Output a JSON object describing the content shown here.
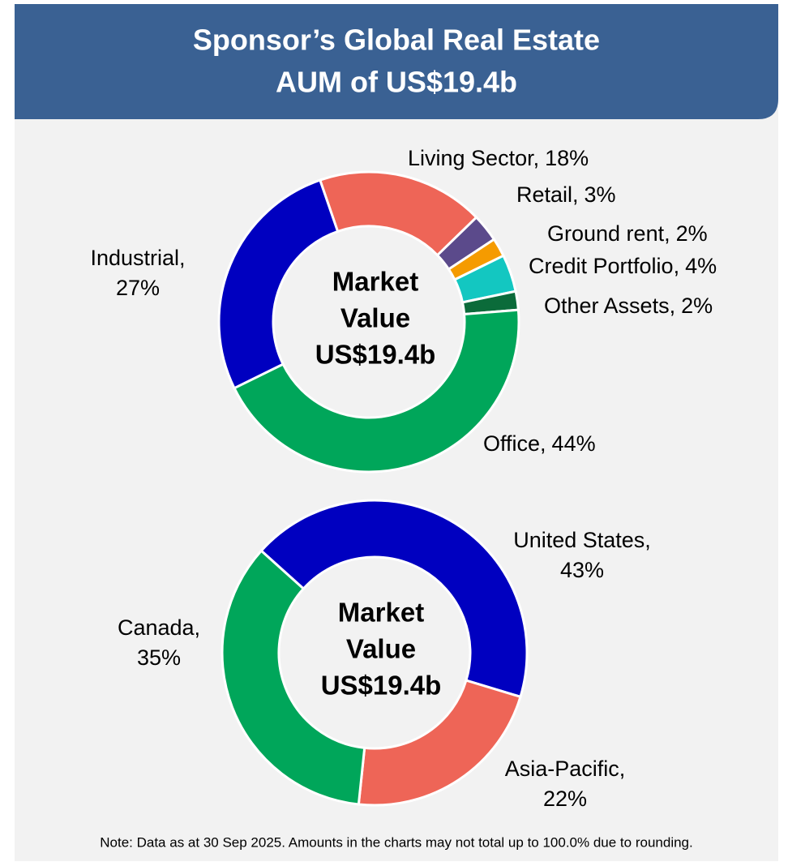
{
  "header": {
    "title": [
      "Sponsor’s Global Real Estate",
      "AUM of US$19.4b"
    ]
  },
  "chart_data": [
    {
      "type": "donut",
      "categories": [
        "Living Sector,",
        "Retail,",
        "Ground rent,",
        "Credit Portfolio,",
        "Other Assets,",
        "Office,",
        "Industrial,"
      ],
      "values": [
        18,
        3,
        2,
        4,
        2,
        44,
        27
      ],
      "value_labels": [
        "18%",
        "3%",
        "2%",
        "4%",
        "2%",
        "44%",
        "27%"
      ],
      "colors": [
        "#ee6557",
        "#5b4a8b",
        "#f59b00",
        "#13c7c1",
        "#0b6b3a",
        "#00a65a",
        "#0000c0"
      ],
      "center_label": [
        "Market",
        "Value",
        "US$19.4b"
      ]
    },
    {
      "type": "donut",
      "categories": [
        "United States,",
        "Asia-Pacific,",
        "Canada,"
      ],
      "values": [
        43,
        22,
        35
      ],
      "value_labels": [
        "43%",
        "22%",
        "35%"
      ],
      "colors": [
        "#0000c0",
        "#ee6557",
        "#00a65a"
      ],
      "center_label": [
        "Market",
        "Value",
        "US$19.4b"
      ]
    }
  ],
  "note": "Note: Data as at 30 Sep 2025. Amounts in the charts may not total up to 100.0% due to rounding."
}
